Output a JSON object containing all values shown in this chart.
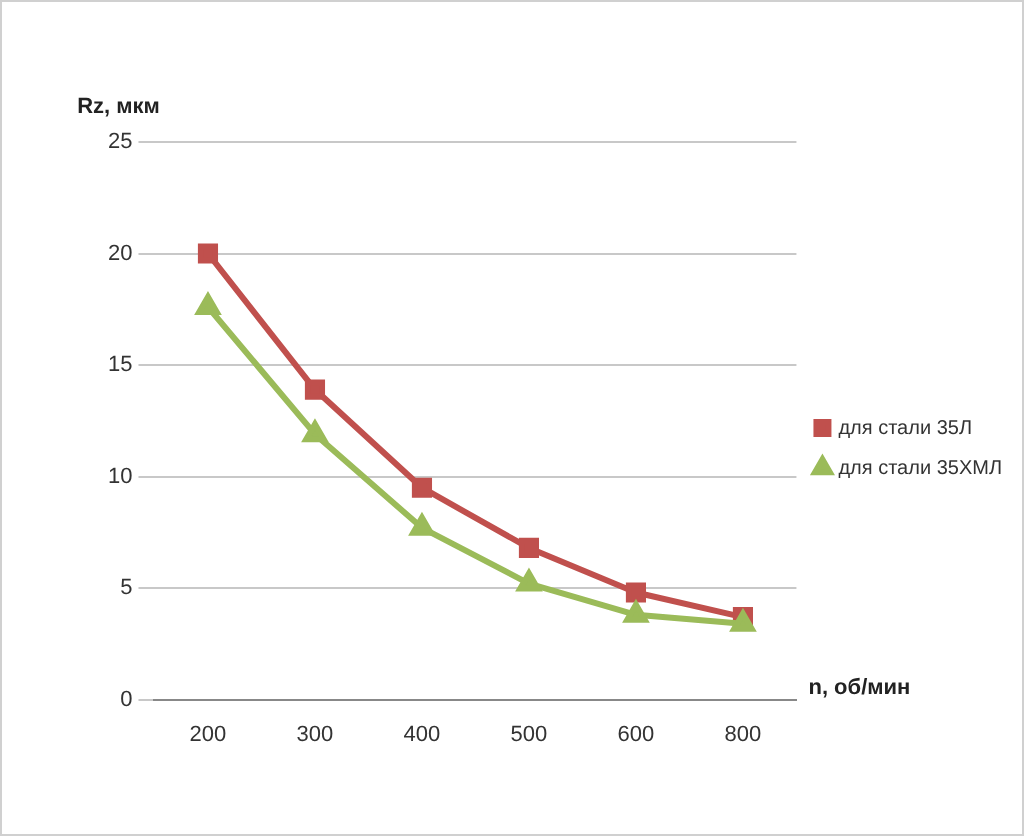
{
  "chart_data": {
    "type": "line",
    "xlabel": "n, об/мин",
    "ylabel": "Rz, мкм",
    "categories": [
      "200",
      "300",
      "400",
      "500",
      "600",
      "800"
    ],
    "series": [
      {
        "name": "для стали 35Л",
        "color": "#c0504d",
        "marker": "square",
        "values": [
          20,
          13.9,
          9.5,
          6.8,
          4.8,
          3.7
        ]
      },
      {
        "name": "для стали 35ХМЛ",
        "color": "#9bbb59",
        "marker": "triangle",
        "values": [
          17.6,
          11.9,
          7.7,
          5.2,
          3.8,
          3.4
        ]
      }
    ],
    "ylim": [
      0,
      25
    ],
    "yticks": [
      0,
      5,
      10,
      15,
      20,
      25
    ],
    "grid": "y",
    "legend": "right",
    "line_style": "solid"
  }
}
